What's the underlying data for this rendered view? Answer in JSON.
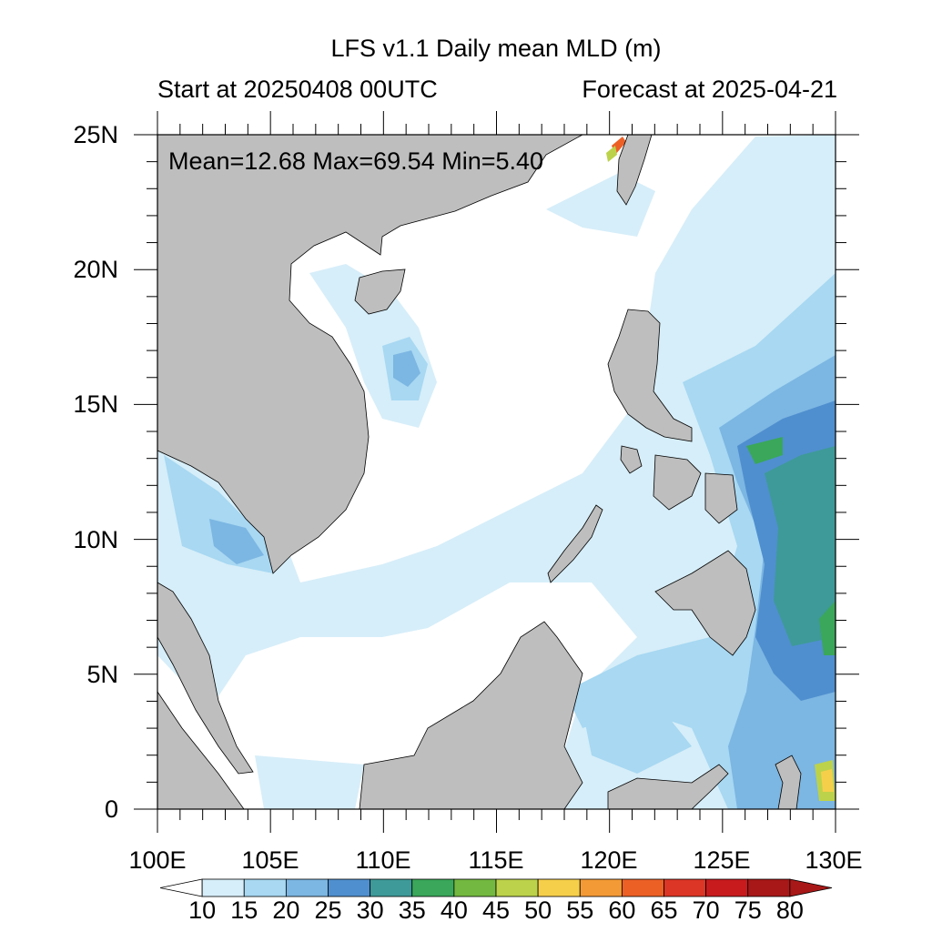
{
  "header": {
    "title": "LFS v1.1 Daily mean MLD (m)",
    "start_label": "Start at 20250408 00UTC",
    "forecast_label": "Forecast at 2025-04-21"
  },
  "stats": {
    "text": "Mean=12.68  Max=69.54  Min=5.40"
  },
  "map": {
    "lon_range": [
      100,
      130
    ],
    "lat_range": [
      0,
      25
    ],
    "land_color": "#bebebe",
    "xticks": [
      "100E",
      "105E",
      "110E",
      "115E",
      "120E",
      "125E",
      "130E"
    ],
    "yticks": [
      "25N",
      "20N",
      "15N",
      "10N",
      "5N",
      "0"
    ]
  },
  "colorbar": {
    "labels": [
      "10",
      "15",
      "20",
      "25",
      "30",
      "35",
      "40",
      "45",
      "50",
      "55",
      "60",
      "65",
      "70",
      "75",
      "80"
    ],
    "colors": [
      "#ffffff",
      "#d6eef9",
      "#a8d8f2",
      "#7cb6e2",
      "#4f8fcf",
      "#3e9a98",
      "#3aa75a",
      "#73b840",
      "#bcd24a",
      "#f6cf4a",
      "#f39a36",
      "#ec6026",
      "#dc3626",
      "#c71b1e",
      "#a81818"
    ]
  }
}
